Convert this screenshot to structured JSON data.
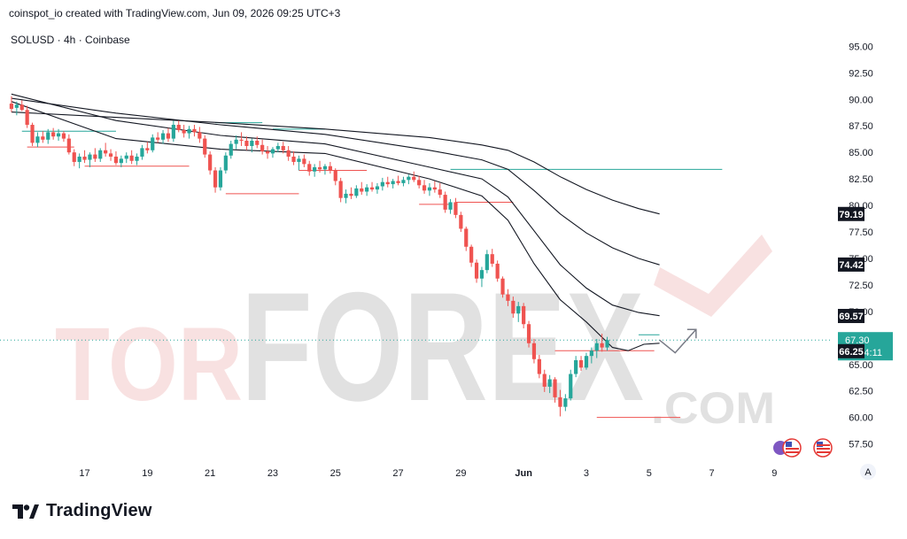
{
  "header": {
    "credit": "coinspot_io created with TradingView.com, Jun 09, 2026 09:25 UTC+3",
    "symbol": "SOLUSD · 4h · Coinbase"
  },
  "brand": {
    "name": "TradingView",
    "icon": "tradingview-logo-icon"
  },
  "watermark": {
    "text_left": "TOR",
    "text_right": "FOREX",
    "suffix": ".COM",
    "color": "#f3c9c9"
  },
  "colors": {
    "up": "#26a69a",
    "down": "#ef5350",
    "ma": "#131722",
    "last_price": "#26a69a",
    "resistance": "#26a69a",
    "support": "#ef5350"
  },
  "axis_tags": {
    "symbol_a": "A"
  },
  "chart_data": {
    "type": "candlestick",
    "title": "SOLUSD · 4h · Coinbase",
    "ylim": [
      56.8,
      96.2
    ],
    "y_ticks": [
      95.0,
      92.5,
      90.0,
      87.5,
      85.0,
      82.5,
      80.0,
      77.5,
      75.0,
      72.5,
      70.0,
      67.5,
      65.0,
      62.5,
      60.0,
      57.5
    ],
    "x_ticks": [
      {
        "label": "17",
        "bar": 14
      },
      {
        "label": "19",
        "bar": 26
      },
      {
        "label": "21",
        "bar": 38
      },
      {
        "label": "23",
        "bar": 50
      },
      {
        "label": "25",
        "bar": 62
      },
      {
        "label": "27",
        "bar": 74
      },
      {
        "label": "29",
        "bar": 86
      },
      {
        "label": "Jun",
        "bar": 98
      },
      {
        "label": "3",
        "bar": 110
      },
      {
        "label": "5",
        "bar": 122
      },
      {
        "label": "7",
        "bar": 134
      },
      {
        "label": "9",
        "bar": 146
      }
    ],
    "price_labels": [
      {
        "value": 79.19,
        "label": "79.19",
        "style": "dark"
      },
      {
        "value": 74.42,
        "label": "74.42",
        "style": "dark"
      },
      {
        "value": 69.57,
        "label": "69.57",
        "style": "dark"
      },
      {
        "value": 67.3,
        "label": "67.30",
        "countdown": "01:34:11",
        "style": "last"
      },
      {
        "value": 66.25,
        "label": "66.25",
        "style": "dark"
      }
    ],
    "last_price": 67.3,
    "candles": [
      [
        89.6,
        90.3,
        88.8,
        89.1
      ],
      [
        89.2,
        89.8,
        88.5,
        89.5
      ],
      [
        89.5,
        89.9,
        88.9,
        89.0
      ],
      [
        89.0,
        89.4,
        87.3,
        87.6
      ],
      [
        87.6,
        87.8,
        85.6,
        85.9
      ],
      [
        85.9,
        86.9,
        85.5,
        86.5
      ],
      [
        86.5,
        87.0,
        85.9,
        86.2
      ],
      [
        86.2,
        87.2,
        85.8,
        86.9
      ],
      [
        86.9,
        87.3,
        86.2,
        86.5
      ],
      [
        86.5,
        87.2,
        86.1,
        86.8
      ],
      [
        86.8,
        87.0,
        86.0,
        86.3
      ],
      [
        86.3,
        86.7,
        84.8,
        85.0
      ],
      [
        85.0,
        85.3,
        83.7,
        84.1
      ],
      [
        84.1,
        84.9,
        83.5,
        84.6
      ],
      [
        84.6,
        85.2,
        84.0,
        84.3
      ],
      [
        84.3,
        85.0,
        83.6,
        84.8
      ],
      [
        84.8,
        85.4,
        84.1,
        84.4
      ],
      [
        84.4,
        85.4,
        84.1,
        85.2
      ],
      [
        85.2,
        85.9,
        84.6,
        84.9
      ],
      [
        84.9,
        85.3,
        84.2,
        84.6
      ],
      [
        84.6,
        85.1,
        83.8,
        84.0
      ],
      [
        84.0,
        84.7,
        83.6,
        84.4
      ],
      [
        84.4,
        85.0,
        84.0,
        84.7
      ],
      [
        84.7,
        85.2,
        83.9,
        84.2
      ],
      [
        84.2,
        84.9,
        83.8,
        84.6
      ],
      [
        84.6,
        85.7,
        84.3,
        85.4
      ],
      [
        85.4,
        86.0,
        84.9,
        85.2
      ],
      [
        85.2,
        86.7,
        85.0,
        86.4
      ],
      [
        86.4,
        86.9,
        85.9,
        86.2
      ],
      [
        86.2,
        87.1,
        85.8,
        86.8
      ],
      [
        86.8,
        87.3,
        86.0,
        86.3
      ],
      [
        86.3,
        88.0,
        86.0,
        87.6
      ],
      [
        87.6,
        88.0,
        86.9,
        87.1
      ],
      [
        87.1,
        87.6,
        86.4,
        86.8
      ],
      [
        86.8,
        87.5,
        86.3,
        87.2
      ],
      [
        87.2,
        87.6,
        86.5,
        86.9
      ],
      [
        86.9,
        87.4,
        85.9,
        86.3
      ],
      [
        86.3,
        86.6,
        84.5,
        84.8
      ],
      [
        84.8,
        85.1,
        82.9,
        83.3
      ],
      [
        83.3,
        83.6,
        81.2,
        81.7
      ],
      [
        81.7,
        83.6,
        81.4,
        83.3
      ],
      [
        83.3,
        85.0,
        83.0,
        84.7
      ],
      [
        84.7,
        86.1,
        84.4,
        85.8
      ],
      [
        85.8,
        86.6,
        85.3,
        86.2
      ],
      [
        86.2,
        86.9,
        85.6,
        86.1
      ],
      [
        86.1,
        86.5,
        85.2,
        85.6
      ],
      [
        85.6,
        86.3,
        85.0,
        86.1
      ],
      [
        86.1,
        86.5,
        85.4,
        85.7
      ],
      [
        85.7,
        86.2,
        84.8,
        85.1
      ],
      [
        85.1,
        85.6,
        84.4,
        84.9
      ],
      [
        84.9,
        85.5,
        84.5,
        85.3
      ],
      [
        85.3,
        85.9,
        85.0,
        85.6
      ],
      [
        85.6,
        86.0,
        84.9,
        85.2
      ],
      [
        85.2,
        85.6,
        84.2,
        84.6
      ],
      [
        84.6,
        85.1,
        83.8,
        84.1
      ],
      [
        84.1,
        84.7,
        83.3,
        84.4
      ],
      [
        84.4,
        84.8,
        83.6,
        83.9
      ],
      [
        83.9,
        84.2,
        82.8,
        83.2
      ],
      [
        83.2,
        83.9,
        82.7,
        83.6
      ],
      [
        83.6,
        84.2,
        83.1,
        83.4
      ],
      [
        83.4,
        83.9,
        82.9,
        83.7
      ],
      [
        83.7,
        84.1,
        83.0,
        83.3
      ],
      [
        83.3,
        83.5,
        81.9,
        82.3
      ],
      [
        82.3,
        82.6,
        80.3,
        80.7
      ],
      [
        80.7,
        81.5,
        80.2,
        81.1
      ],
      [
        81.1,
        81.7,
        80.6,
        80.9
      ],
      [
        80.9,
        81.9,
        80.7,
        81.6
      ],
      [
        81.6,
        82.2,
        81.0,
        81.3
      ],
      [
        81.3,
        82.0,
        80.9,
        81.7
      ],
      [
        81.7,
        82.2,
        81.3,
        81.5
      ],
      [
        81.5,
        82.1,
        81.1,
        81.8
      ],
      [
        81.8,
        82.6,
        81.4,
        82.2
      ],
      [
        82.2,
        82.7,
        81.7,
        82.0
      ],
      [
        82.0,
        82.5,
        81.6,
        82.3
      ],
      [
        82.3,
        82.8,
        81.9,
        82.1
      ],
      [
        82.1,
        82.7,
        81.8,
        82.4
      ],
      [
        82.4,
        82.9,
        82.0,
        82.7
      ],
      [
        82.7,
        83.2,
        82.2,
        82.4
      ],
      [
        82.4,
        82.8,
        81.6,
        81.9
      ],
      [
        81.9,
        82.4,
        81.1,
        81.4
      ],
      [
        81.4,
        82.1,
        80.9,
        81.7
      ],
      [
        81.7,
        82.3,
        81.2,
        81.5
      ],
      [
        81.5,
        82.1,
        80.7,
        81.0
      ],
      [
        81.0,
        81.3,
        79.3,
        79.6
      ],
      [
        79.6,
        80.6,
        79.2,
        80.3
      ],
      [
        80.3,
        80.7,
        78.8,
        79.1
      ],
      [
        79.1,
        79.4,
        77.5,
        77.8
      ],
      [
        77.8,
        78.0,
        75.7,
        76.1
      ],
      [
        76.1,
        76.3,
        74.2,
        74.6
      ],
      [
        74.6,
        74.9,
        72.7,
        73.1
      ],
      [
        73.1,
        74.2,
        72.3,
        73.9
      ],
      [
        73.9,
        75.8,
        73.6,
        75.4
      ],
      [
        75.4,
        75.9,
        74.2,
        74.5
      ],
      [
        74.5,
        74.8,
        72.8,
        73.1
      ],
      [
        73.1,
        73.3,
        71.3,
        71.6
      ],
      [
        71.6,
        72.1,
        70.5,
        71.0
      ],
      [
        71.0,
        71.4,
        69.4,
        69.8
      ],
      [
        69.8,
        70.9,
        69.0,
        70.5
      ],
      [
        70.5,
        70.8,
        68.4,
        68.8
      ],
      [
        68.8,
        69.1,
        66.6,
        67.0
      ],
      [
        67.0,
        67.4,
        65.1,
        65.5
      ],
      [
        65.5,
        65.9,
        63.7,
        64.1
      ],
      [
        64.1,
        64.5,
        62.4,
        62.9
      ],
      [
        62.9,
        64.0,
        62.3,
        63.6
      ],
      [
        63.6,
        63.8,
        61.4,
        61.9
      ],
      [
        61.9,
        62.6,
        60.1,
        61.0
      ],
      [
        61.0,
        62.2,
        60.6,
        61.8
      ],
      [
        61.8,
        64.5,
        61.6,
        64.1
      ],
      [
        64.1,
        65.8,
        63.8,
        65.4
      ],
      [
        65.4,
        65.8,
        64.4,
        64.7
      ],
      [
        64.7,
        66.1,
        64.5,
        65.8
      ],
      [
        65.8,
        66.6,
        65.1,
        66.3
      ],
      [
        66.3,
        67.4,
        65.6,
        67.0
      ],
      [
        67.0,
        67.9,
        66.2,
        66.6
      ],
      [
        66.6,
        67.6,
        66.3,
        67.3
      ]
    ],
    "moving_averages": [
      {
        "period": 20,
        "points": [
          [
            0,
            89.8
          ],
          [
            20,
            86.3
          ],
          [
            40,
            85.3
          ],
          [
            60,
            84.9
          ],
          [
            80,
            82.5
          ],
          [
            90,
            80.9
          ],
          [
            95,
            78.6
          ],
          [
            100,
            74.5
          ],
          [
            105,
            71.1
          ],
          [
            110,
            69.0
          ],
          [
            115,
            66.6
          ],
          [
            118,
            66.3
          ],
          [
            121,
            66.9
          ],
          [
            124,
            67.0
          ]
        ]
      },
      {
        "period": 50,
        "points": [
          [
            0,
            90.5
          ],
          [
            20,
            88.0
          ],
          [
            40,
            86.6
          ],
          [
            60,
            85.8
          ],
          [
            80,
            83.6
          ],
          [
            90,
            82.5
          ],
          [
            95,
            80.8
          ],
          [
            100,
            77.6
          ],
          [
            105,
            74.4
          ],
          [
            110,
            72.2
          ],
          [
            115,
            70.6
          ],
          [
            120,
            69.9
          ],
          [
            124,
            69.6
          ]
        ]
      },
      {
        "period": 100,
        "points": [
          [
            0,
            90.1
          ],
          [
            20,
            88.7
          ],
          [
            40,
            87.6
          ],
          [
            60,
            86.7
          ],
          [
            80,
            85.2
          ],
          [
            90,
            84.3
          ],
          [
            95,
            83.4
          ],
          [
            100,
            81.4
          ],
          [
            105,
            79.2
          ],
          [
            110,
            77.4
          ],
          [
            115,
            76.0
          ],
          [
            120,
            75.0
          ],
          [
            124,
            74.4
          ]
        ]
      },
      {
        "period": 200,
        "points": [
          [
            0,
            88.8
          ],
          [
            20,
            88.3
          ],
          [
            40,
            87.8
          ],
          [
            60,
            87.2
          ],
          [
            80,
            86.4
          ],
          [
            90,
            85.7
          ],
          [
            95,
            85.2
          ],
          [
            100,
            84.1
          ],
          [
            105,
            82.7
          ],
          [
            110,
            81.5
          ],
          [
            115,
            80.5
          ],
          [
            120,
            79.7
          ],
          [
            124,
            79.2
          ]
        ]
      }
    ],
    "levels": [
      {
        "type": "resistance",
        "from": 2,
        "to": 20,
        "value": 87.0
      },
      {
        "type": "resistance",
        "from": 39,
        "to": 48,
        "value": 87.8
      },
      {
        "type": "resistance",
        "from": 50,
        "to": 60,
        "value": 87.2
      },
      {
        "type": "resistance",
        "from": 84,
        "to": 136,
        "value": 83.4
      },
      {
        "type": "resistance",
        "from": 120,
        "to": 124,
        "value": 67.8
      },
      {
        "type": "support",
        "from": 3,
        "to": 12,
        "value": 85.5
      },
      {
        "type": "support",
        "from": 14,
        "to": 34,
        "value": 83.7
      },
      {
        "type": "support",
        "from": 41,
        "to": 55,
        "value": 81.1
      },
      {
        "type": "support",
        "from": 55,
        "to": 68,
        "value": 83.3
      },
      {
        "type": "support",
        "from": 78,
        "to": 84,
        "value": 80.1
      },
      {
        "type": "support",
        "from": 85,
        "to": 96,
        "value": 80.3
      },
      {
        "type": "support",
        "from": 104,
        "to": 123,
        "value": 66.3
      },
      {
        "type": "support",
        "from": 112,
        "to": 128,
        "value": 60.0
      }
    ],
    "projection": [
      [
        124,
        67.3
      ],
      [
        127,
        66.1
      ],
      [
        131,
        68.3
      ]
    ],
    "xlabel": "",
    "ylabel": ""
  }
}
